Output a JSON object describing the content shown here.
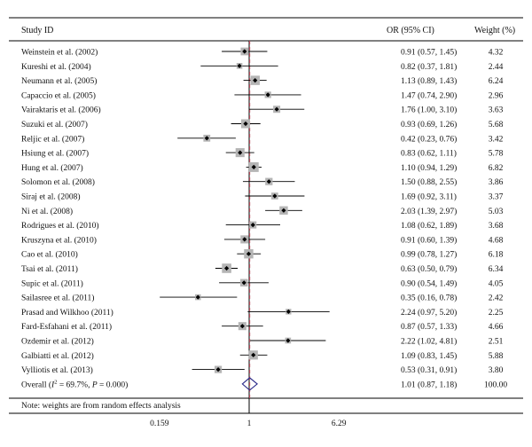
{
  "chart_data": {
    "type": "forest",
    "columns": {
      "study": "Study ID",
      "ci": "OR (95% CI)",
      "weight": "Weight (%)"
    },
    "x_scale": "log",
    "x_ticks": [
      "0.159",
      "1",
      "6.29"
    ],
    "reference_line": 1,
    "pooled_line": 1.01,
    "studies": [
      {
        "label": "Weinstein et al. (2002)",
        "or": 0.91,
        "lo": 0.57,
        "hi": 1.45,
        "ci": "0.91 (0.57, 1.45)",
        "weight": "4.32"
      },
      {
        "label": "Kureshi et al. (2004)",
        "or": 0.82,
        "lo": 0.37,
        "hi": 1.81,
        "ci": "0.82 (0.37, 1.81)",
        "weight": "2.44"
      },
      {
        "label": "Neumann et al. (2005)",
        "or": 1.13,
        "lo": 0.89,
        "hi": 1.43,
        "ci": "1.13 (0.89, 1.43)",
        "weight": "6.24"
      },
      {
        "label": "Capaccio et al. (2005)",
        "or": 1.47,
        "lo": 0.74,
        "hi": 2.9,
        "ci": "1.47 (0.74, 2.90)",
        "weight": "2.96"
      },
      {
        "label": "Vairaktaris et al. (2006)",
        "or": 1.76,
        "lo": 1.0,
        "hi": 3.1,
        "ci": "1.76 (1.00, 3.10)",
        "weight": "3.63"
      },
      {
        "label": "Suzuki et al. (2007)",
        "or": 0.93,
        "lo": 0.69,
        "hi": 1.26,
        "ci": "0.93 (0.69, 1.26)",
        "weight": "5.68"
      },
      {
        "label": "Reljic et al. (2007)",
        "or": 0.42,
        "lo": 0.23,
        "hi": 0.76,
        "ci": "0.42 (0.23, 0.76)",
        "weight": "3.42"
      },
      {
        "label": "Hsiung et al. (2007)",
        "or": 0.83,
        "lo": 0.62,
        "hi": 1.11,
        "ci": "0.83 (0.62, 1.11)",
        "weight": "5.78"
      },
      {
        "label": "Hung et al. (2007)",
        "or": 1.1,
        "lo": 0.94,
        "hi": 1.29,
        "ci": "1.10 (0.94, 1.29)",
        "weight": "6.82"
      },
      {
        "label": "Solomon et al. (2008)",
        "or": 1.5,
        "lo": 0.88,
        "hi": 2.55,
        "ci": "1.50 (0.88, 2.55)",
        "weight": "3.86"
      },
      {
        "label": "Siraj et al. (2008)",
        "or": 1.69,
        "lo": 0.92,
        "hi": 3.11,
        "ci": "1.69 (0.92, 3.11)",
        "weight": "3.37"
      },
      {
        "label": "Ni et al. (2008)",
        "or": 2.03,
        "lo": 1.39,
        "hi": 2.97,
        "ci": "2.03 (1.39, 2.97)",
        "weight": "5.03"
      },
      {
        "label": "Rodrigues et al. (2010)",
        "or": 1.08,
        "lo": 0.62,
        "hi": 1.89,
        "ci": "1.08 (0.62, 1.89)",
        "weight": "3.68"
      },
      {
        "label": "Kruszyna et al. (2010)",
        "or": 0.91,
        "lo": 0.6,
        "hi": 1.39,
        "ci": "0.91 (0.60, 1.39)",
        "weight": "4.68"
      },
      {
        "label": "Cao et al. (2010)",
        "or": 0.99,
        "lo": 0.78,
        "hi": 1.27,
        "ci": "0.99 (0.78, 1.27)",
        "weight": "6.18"
      },
      {
        "label": "Tsai et al. (2011)",
        "or": 0.63,
        "lo": 0.5,
        "hi": 0.79,
        "ci": "0.63 (0.50, 0.79)",
        "weight": "6.34"
      },
      {
        "label": "Supic et al. (2011)",
        "or": 0.9,
        "lo": 0.54,
        "hi": 1.49,
        "ci": "0.90 (0.54, 1.49)",
        "weight": "4.05"
      },
      {
        "label": "Sailasree et al. (2011)",
        "or": 0.35,
        "lo": 0.16,
        "hi": 0.78,
        "ci": "0.35 (0.16, 0.78)",
        "weight": "2.42"
      },
      {
        "label": "Prasad and Wilkhoo (2011)",
        "or": 2.24,
        "lo": 0.97,
        "hi": 5.2,
        "ci": "2.24 (0.97, 5.20)",
        "weight": "2.25"
      },
      {
        "label": "Fard-Esfahani et al. (2011)",
        "or": 0.87,
        "lo": 0.57,
        "hi": 1.33,
        "ci": "0.87 (0.57, 1.33)",
        "weight": "4.66"
      },
      {
        "label": "Ozdemir et al. (2012)",
        "or": 2.22,
        "lo": 1.02,
        "hi": 4.81,
        "ci": "2.22 (1.02, 4.81)",
        "weight": "2.51"
      },
      {
        "label": "Galbiatti et al. (2012)",
        "or": 1.09,
        "lo": 0.83,
        "hi": 1.45,
        "ci": "1.09 (0.83, 1.45)",
        "weight": "5.88"
      },
      {
        "label": "Vylliotis et al. (2013)",
        "or": 0.53,
        "lo": 0.31,
        "hi": 0.91,
        "ci": "0.53 (0.31, 0.91)",
        "weight": "3.80"
      }
    ],
    "overall": {
      "label_prefix": "Overall (",
      "i2_symbol": "I",
      "i2_sup": "2",
      "i2_rest": " = 69.7%, ",
      "p_symbol": "P",
      "p_rest": " = 0.000)",
      "or": 1.01,
      "lo": 0.87,
      "hi": 1.18,
      "ci": "1.01 (0.87, 1.18)",
      "weight": "100.00"
    },
    "note": "Note: weights are from random effects analysis",
    "colors": {
      "line": "#000000",
      "box": "#b5b5b5",
      "reference": "#000000",
      "pooled": "#b04a5a",
      "diamond": "#2a2a8a"
    }
  }
}
